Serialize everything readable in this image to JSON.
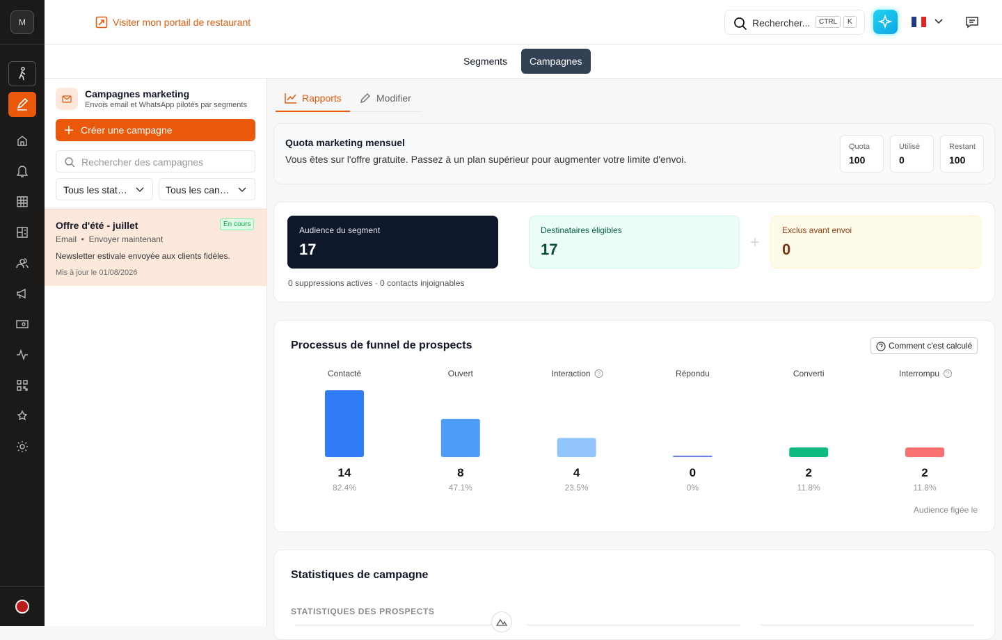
{
  "header": {
    "avatar_initial": "M",
    "portal_link": "Visiter mon portail de restaurant",
    "search_placeholder": "Rechercher...",
    "shortcut_keys": [
      "CTRL",
      "K"
    ]
  },
  "tabs": [
    "Segments",
    "Campagnes"
  ],
  "active_tab_index": 1,
  "panel": {
    "title": "Campagnes marketing",
    "subtitle": "Envois email et WhatsApp pilotés par segments",
    "create_button": "Créer une campagne",
    "search_placeholder": "Rechercher des campagnes",
    "filters": [
      "Tous les stat…",
      "Tous les can…"
    ]
  },
  "campaigns": [
    {
      "name": "Offre d'été - juillet",
      "status": "En cours",
      "channel": "Email",
      "schedule": "Envoyer maintenant",
      "description": "Newsletter estivale envoyée aux clients fidèles.",
      "updated": "Mis à jour le 01/08/2026"
    }
  ],
  "report_tabs": [
    "Rapports",
    "Modifier"
  ],
  "quota": {
    "title": "Quota marketing mensuel",
    "description": "Vous êtes sur l'offre gratuite. Passez à un plan supérieur pour augmenter votre limite d'envoi.",
    "items": [
      {
        "label": "Quota",
        "value": 100
      },
      {
        "label": "Utilisé",
        "value": 0
      },
      {
        "label": "Restant",
        "value": 100
      }
    ]
  },
  "audience": {
    "cards": [
      {
        "label": "Audience du segment",
        "value": 17
      },
      {
        "label": "Destinataires éligibles",
        "value": 17
      },
      {
        "label": "Exclus avant envoi",
        "value": 0
      }
    ],
    "note": "0 suppressions actives · 0 contacts injoignables"
  },
  "funnel": {
    "title": "Processus de funnel de prospects",
    "help_button": "Comment c'est calculé",
    "footer": "Audience figée le",
    "stages": [
      {
        "label": "Contacté",
        "value": 14,
        "percent": "82.4%",
        "color": "#2f7cf6",
        "help": false
      },
      {
        "label": "Ouvert",
        "value": 8,
        "percent": "47.1%",
        "color": "#4d9cf6",
        "help": false
      },
      {
        "label": "Interaction",
        "value": 4,
        "percent": "23.5%",
        "color": "#93c5fd",
        "help": true
      },
      {
        "label": "Répondu",
        "value": 0,
        "percent": "0%",
        "color": "#6b7fe6",
        "help": false
      },
      {
        "label": "Converti",
        "value": 2,
        "percent": "11.8%",
        "color": "#10b981",
        "help": false
      },
      {
        "label": "Interrompu",
        "value": 2,
        "percent": "11.8%",
        "color": "#f87171",
        "help": true
      }
    ]
  },
  "stats": {
    "title": "Statistiques de campagne",
    "section": "STATISTIQUES DES PROSPECTS"
  }
}
